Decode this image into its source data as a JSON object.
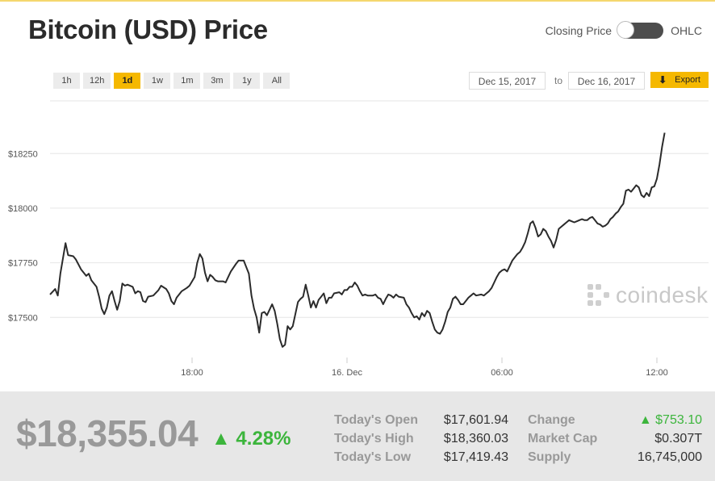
{
  "header": {
    "title": "Bitcoin (USD) Price",
    "toggle_left": "Closing Price",
    "toggle_right": "OHLC"
  },
  "toolbar": {
    "ranges": [
      "1h",
      "12h",
      "1d",
      "1w",
      "1m",
      "3m",
      "1y",
      "All"
    ],
    "active_range": "1d",
    "date_from": "Dec 15, 2017",
    "date_to_label": "to",
    "date_to": "Dec 16, 2017",
    "export_label": "Export"
  },
  "watermark": "coindesk",
  "colors": {
    "accent": "#f5b800",
    "line": "#2b2b2b",
    "positive": "#3cb53c"
  },
  "chart_data": {
    "type": "line",
    "title": "",
    "xlabel": "",
    "ylabel": "",
    "x_ticks": [
      {
        "label": "18:00",
        "t": 5.5
      },
      {
        "label": "16. Dec",
        "t": 11.5
      },
      {
        "label": "06:00",
        "t": 17.5
      },
      {
        "label": "12:00",
        "t": 23.5
      }
    ],
    "y_ticks": [
      {
        "label": "$17500",
        "value": 17500
      },
      {
        "label": "$17750",
        "value": 17750
      },
      {
        "label": "$18000",
        "value": 18000
      },
      {
        "label": "$18250",
        "value": 18250
      }
    ],
    "xlim": [
      0,
      25.5
    ],
    "ylim": [
      17320,
      18480
    ],
    "grid": true,
    "series": [
      {
        "values": [
          [
            0.0,
            17605
          ],
          [
            0.2,
            17630
          ],
          [
            0.3,
            17600
          ],
          [
            0.4,
            17700
          ],
          [
            0.5,
            17770
          ],
          [
            0.6,
            17840
          ],
          [
            0.7,
            17785
          ],
          [
            0.9,
            17780
          ],
          [
            1.0,
            17765
          ],
          [
            1.2,
            17720
          ],
          [
            1.4,
            17690
          ],
          [
            1.5,
            17700
          ],
          [
            1.6,
            17670
          ],
          [
            1.8,
            17640
          ],
          [
            1.9,
            17595
          ],
          [
            2.0,
            17540
          ],
          [
            2.1,
            17515
          ],
          [
            2.2,
            17545
          ],
          [
            2.3,
            17600
          ],
          [
            2.4,
            17620
          ],
          [
            2.5,
            17575
          ],
          [
            2.6,
            17535
          ],
          [
            2.7,
            17575
          ],
          [
            2.8,
            17655
          ],
          [
            2.9,
            17645
          ],
          [
            3.0,
            17650
          ],
          [
            3.2,
            17640
          ],
          [
            3.3,
            17610
          ],
          [
            3.4,
            17620
          ],
          [
            3.5,
            17615
          ],
          [
            3.6,
            17575
          ],
          [
            3.7,
            17570
          ],
          [
            3.8,
            17595
          ],
          [
            4.0,
            17600
          ],
          [
            4.2,
            17625
          ],
          [
            4.3,
            17645
          ],
          [
            4.5,
            17630
          ],
          [
            4.6,
            17610
          ],
          [
            4.7,
            17575
          ],
          [
            4.8,
            17560
          ],
          [
            4.9,
            17590
          ],
          [
            5.1,
            17620
          ],
          [
            5.3,
            17635
          ],
          [
            5.4,
            17645
          ],
          [
            5.6,
            17685
          ],
          [
            5.7,
            17750
          ],
          [
            5.8,
            17790
          ],
          [
            5.9,
            17770
          ],
          [
            6.0,
            17705
          ],
          [
            6.1,
            17665
          ],
          [
            6.2,
            17695
          ],
          [
            6.3,
            17685
          ],
          [
            6.4,
            17670
          ],
          [
            6.5,
            17665
          ],
          [
            6.7,
            17665
          ],
          [
            6.8,
            17660
          ],
          [
            6.9,
            17685
          ],
          [
            7.0,
            17710
          ],
          [
            7.2,
            17745
          ],
          [
            7.3,
            17760
          ],
          [
            7.5,
            17760
          ],
          [
            7.6,
            17730
          ],
          [
            7.7,
            17700
          ],
          [
            7.8,
            17600
          ],
          [
            7.9,
            17540
          ],
          [
            8.0,
            17500
          ],
          [
            8.1,
            17430
          ],
          [
            8.2,
            17520
          ],
          [
            8.3,
            17525
          ],
          [
            8.4,
            17510
          ],
          [
            8.5,
            17535
          ],
          [
            8.6,
            17560
          ],
          [
            8.7,
            17530
          ],
          [
            8.8,
            17470
          ],
          [
            8.9,
            17400
          ],
          [
            9.0,
            17365
          ],
          [
            9.1,
            17375
          ],
          [
            9.2,
            17460
          ],
          [
            9.3,
            17445
          ],
          [
            9.4,
            17460
          ],
          [
            9.5,
            17515
          ],
          [
            9.6,
            17570
          ],
          [
            9.7,
            17585
          ],
          [
            9.8,
            17595
          ],
          [
            9.9,
            17650
          ],
          [
            10.0,
            17600
          ],
          [
            10.1,
            17545
          ],
          [
            10.2,
            17575
          ],
          [
            10.3,
            17545
          ],
          [
            10.4,
            17580
          ],
          [
            10.5,
            17595
          ],
          [
            10.6,
            17610
          ],
          [
            10.7,
            17565
          ],
          [
            10.8,
            17590
          ],
          [
            10.9,
            17590
          ],
          [
            11.0,
            17610
          ],
          [
            11.2,
            17615
          ],
          [
            11.3,
            17605
          ],
          [
            11.4,
            17625
          ],
          [
            11.5,
            17625
          ],
          [
            11.6,
            17640
          ],
          [
            11.7,
            17640
          ],
          [
            11.8,
            17660
          ],
          [
            11.9,
            17645
          ],
          [
            12.0,
            17620
          ],
          [
            12.1,
            17600
          ],
          [
            12.2,
            17605
          ],
          [
            12.3,
            17600
          ],
          [
            12.5,
            17600
          ],
          [
            12.6,
            17605
          ],
          [
            12.7,
            17590
          ],
          [
            12.8,
            17585
          ],
          [
            12.9,
            17560
          ],
          [
            13.0,
            17585
          ],
          [
            13.1,
            17605
          ],
          [
            13.2,
            17600
          ],
          [
            13.3,
            17590
          ],
          [
            13.4,
            17605
          ],
          [
            13.5,
            17595
          ],
          [
            13.7,
            17590
          ],
          [
            13.8,
            17560
          ],
          [
            13.9,
            17545
          ],
          [
            14.0,
            17520
          ],
          [
            14.1,
            17500
          ],
          [
            14.2,
            17505
          ],
          [
            14.3,
            17490
          ],
          [
            14.4,
            17520
          ],
          [
            14.5,
            17505
          ],
          [
            14.6,
            17530
          ],
          [
            14.7,
            17520
          ],
          [
            14.8,
            17480
          ],
          [
            14.9,
            17445
          ],
          [
            15.0,
            17430
          ],
          [
            15.1,
            17425
          ],
          [
            15.2,
            17445
          ],
          [
            15.3,
            17480
          ],
          [
            15.4,
            17525
          ],
          [
            15.5,
            17545
          ],
          [
            15.6,
            17585
          ],
          [
            15.7,
            17595
          ],
          [
            15.8,
            17580
          ],
          [
            15.9,
            17560
          ],
          [
            16.0,
            17560
          ],
          [
            16.1,
            17575
          ],
          [
            16.2,
            17590
          ],
          [
            16.3,
            17600
          ],
          [
            16.4,
            17610
          ],
          [
            16.5,
            17600
          ],
          [
            16.7,
            17605
          ],
          [
            16.8,
            17600
          ],
          [
            16.9,
            17610
          ],
          [
            17.0,
            17620
          ],
          [
            17.1,
            17635
          ],
          [
            17.2,
            17660
          ],
          [
            17.3,
            17685
          ],
          [
            17.4,
            17705
          ],
          [
            17.5,
            17715
          ],
          [
            17.6,
            17720
          ],
          [
            17.7,
            17710
          ],
          [
            17.8,
            17735
          ],
          [
            17.9,
            17760
          ],
          [
            18.0,
            17775
          ],
          [
            18.1,
            17790
          ],
          [
            18.2,
            17800
          ],
          [
            18.3,
            17820
          ],
          [
            18.4,
            17845
          ],
          [
            18.5,
            17885
          ],
          [
            18.6,
            17930
          ],
          [
            18.7,
            17940
          ],
          [
            18.8,
            17910
          ],
          [
            18.9,
            17870
          ],
          [
            19.0,
            17880
          ],
          [
            19.1,
            17905
          ],
          [
            19.2,
            17895
          ],
          [
            19.3,
            17870
          ],
          [
            19.4,
            17850
          ],
          [
            19.5,
            17820
          ],
          [
            19.6,
            17855
          ],
          [
            19.7,
            17905
          ],
          [
            19.8,
            17915
          ],
          [
            19.9,
            17925
          ],
          [
            20.0,
            17935
          ],
          [
            20.1,
            17945
          ],
          [
            20.2,
            17940
          ],
          [
            20.3,
            17935
          ],
          [
            20.4,
            17940
          ],
          [
            20.5,
            17945
          ],
          [
            20.6,
            17950
          ],
          [
            20.7,
            17945
          ],
          [
            20.8,
            17945
          ],
          [
            20.9,
            17955
          ],
          [
            21.0,
            17960
          ],
          [
            21.1,
            17945
          ],
          [
            21.2,
            17930
          ],
          [
            21.3,
            17925
          ],
          [
            21.4,
            17915
          ],
          [
            21.5,
            17920
          ],
          [
            21.6,
            17930
          ],
          [
            21.7,
            17950
          ],
          [
            21.8,
            17960
          ],
          [
            21.9,
            17975
          ],
          [
            22.0,
            17985
          ],
          [
            22.1,
            18005
          ],
          [
            22.2,
            18020
          ],
          [
            22.3,
            18080
          ],
          [
            22.4,
            18085
          ],
          [
            22.5,
            18075
          ],
          [
            22.6,
            18090
          ],
          [
            22.7,
            18105
          ],
          [
            22.8,
            18095
          ],
          [
            22.9,
            18060
          ],
          [
            23.0,
            18050
          ],
          [
            23.1,
            18070
          ],
          [
            23.2,
            18055
          ],
          [
            23.3,
            18095
          ],
          [
            23.4,
            18100
          ],
          [
            23.5,
            18135
          ],
          [
            23.6,
            18200
          ],
          [
            23.7,
            18280
          ],
          [
            23.8,
            18345
          ]
        ]
      }
    ]
  },
  "summary": {
    "price": "$18,355.04",
    "change_pct": "▲ 4.28%",
    "stats_left": [
      {
        "label": "Today's Open",
        "value": "$17,601.94"
      },
      {
        "label": "Today's High",
        "value": "$18,360.03"
      },
      {
        "label": "Today's Low",
        "value": "$17,419.43"
      }
    ],
    "stats_right": [
      {
        "label": "Change",
        "value": "▲ $753.10"
      },
      {
        "label": "Market Cap",
        "value": "$0.307T"
      },
      {
        "label": "Supply",
        "value": "16,745,000"
      }
    ]
  }
}
